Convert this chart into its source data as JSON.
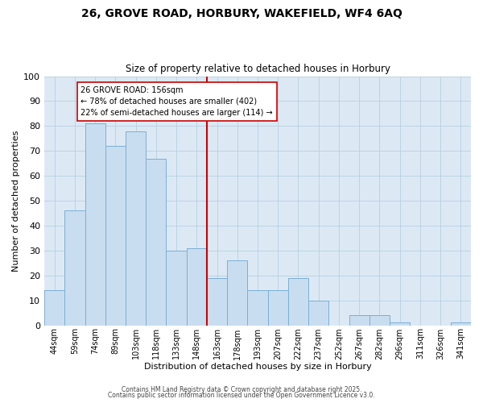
{
  "title": "26, GROVE ROAD, HORBURY, WAKEFIELD, WF4 6AQ",
  "subtitle": "Size of property relative to detached houses in Horbury",
  "xlabel": "Distribution of detached houses by size in Horbury",
  "ylabel": "Number of detached properties",
  "bar_color": "#c9ddf0",
  "bar_edge_color": "#7bafd4",
  "categories": [
    "44sqm",
    "59sqm",
    "74sqm",
    "89sqm",
    "103sqm",
    "118sqm",
    "133sqm",
    "148sqm",
    "163sqm",
    "178sqm",
    "193sqm",
    "207sqm",
    "222sqm",
    "237sqm",
    "252sqm",
    "267sqm",
    "282sqm",
    "296sqm",
    "311sqm",
    "326sqm",
    "341sqm"
  ],
  "values": [
    14,
    46,
    81,
    72,
    78,
    67,
    30,
    31,
    19,
    26,
    14,
    14,
    19,
    10,
    0,
    4,
    4,
    1,
    0,
    0,
    1
  ],
  "ylim": [
    0,
    100
  ],
  "yticks": [
    0,
    10,
    20,
    30,
    40,
    50,
    60,
    70,
    80,
    90,
    100
  ],
  "vline_index": 8,
  "vline_color": "#cc0000",
  "annotation_title": "26 GROVE ROAD: 156sqm",
  "annotation_line1": "← 78% of detached houses are smaller (402)",
  "annotation_line2": "22% of semi-detached houses are larger (114) →",
  "annotation_box_color": "#ffffff",
  "annotation_box_edge": "#cc0000",
  "footer1": "Contains HM Land Registry data © Crown copyright and database right 2025.",
  "footer2": "Contains public sector information licensed under the Open Government Licence v3.0.",
  "background_color": "#ffffff",
  "plot_bg_color": "#dce9f5",
  "grid_color": "#b8cfe0"
}
